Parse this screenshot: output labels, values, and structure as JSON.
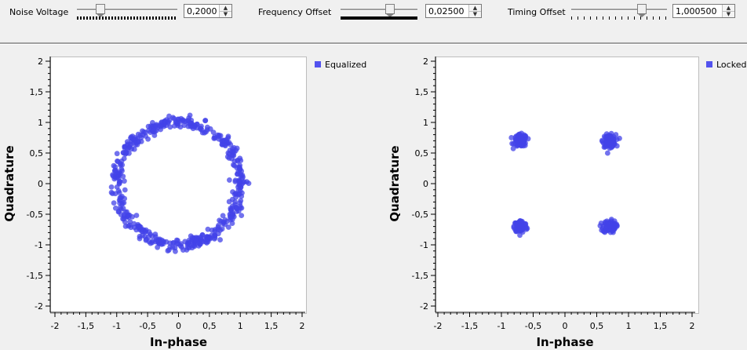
{
  "controls": {
    "noise": {
      "label": "Noise Voltage",
      "value": "0,2000",
      "level": 0.2
    },
    "frequency": {
      "label": "Frequency Offset",
      "value": "0,02500",
      "level": 0.65
    },
    "timing": {
      "label": "Timing Offset",
      "value": "1,000500",
      "level": 0.75
    }
  },
  "plots": [
    {
      "legend": "Equalized",
      "xlabel": "In-phase",
      "ylabel": "Quadrature",
      "xlim": [
        -2,
        2
      ],
      "ylim": [
        -2,
        2
      ],
      "xticks": [
        "-2",
        "-1,5",
        "-1",
        "-0,5",
        "0",
        "0,5",
        "1",
        "1,5",
        "2"
      ],
      "yticks": [
        "2",
        "1,5",
        "1",
        "0,5",
        "0",
        "-0,5",
        "-1",
        "-1,5",
        "-2"
      ]
    },
    {
      "legend": "Locked",
      "xlabel": "In-phase",
      "ylabel": "Quadrature",
      "xlim": [
        -2,
        2
      ],
      "ylim": [
        -2,
        2
      ],
      "xticks": [
        "-2",
        "-1,5",
        "-1",
        "-0,5",
        "0",
        "0,5",
        "1",
        "1,5",
        "2"
      ],
      "yticks": [
        "2",
        "1,5",
        "1",
        "0,5",
        "0",
        "-0,5",
        "-1",
        "-1,5",
        "-2"
      ]
    }
  ],
  "chart_data": [
    {
      "type": "scatter",
      "series": [
        {
          "name": "Equalized",
          "shape": "ring",
          "radius": 1.0,
          "spread": 0.05,
          "count": 500
        }
      ],
      "xlabel": "In-phase",
      "ylabel": "Quadrature",
      "xlim": [
        -2,
        2
      ],
      "ylim": [
        -2,
        2
      ],
      "grid": false,
      "legend_position": "right",
      "marker_color": "#4343e8"
    },
    {
      "type": "scatter",
      "series": [
        {
          "name": "Locked",
          "shape": "clusters",
          "centers": [
            [
              -0.7,
              0.7
            ],
            [
              0.7,
              0.7
            ],
            [
              -0.7,
              -0.7
            ],
            [
              0.7,
              -0.7
            ]
          ],
          "spread": 0.05,
          "count": 400
        }
      ],
      "xlabel": "In-phase",
      "ylabel": "Quadrature",
      "xlim": [
        -2,
        2
      ],
      "ylim": [
        -2,
        2
      ],
      "grid": false,
      "legend_position": "right",
      "marker_color": "#4343e8"
    }
  ]
}
